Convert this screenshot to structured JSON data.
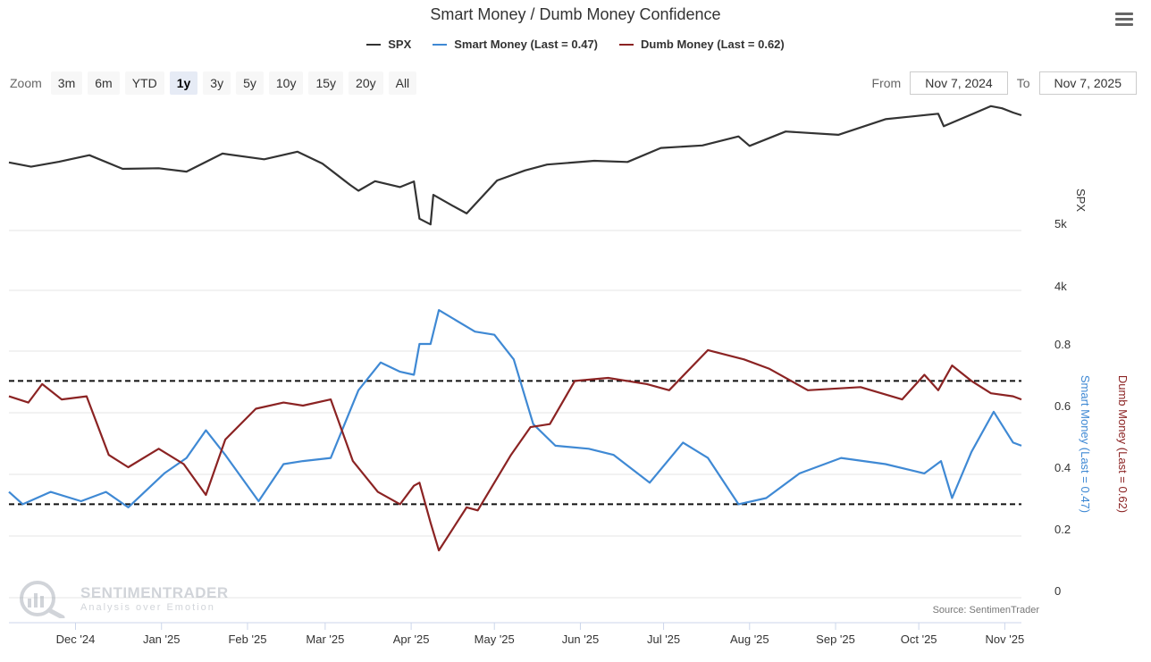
{
  "title": "Smart Money / Dumb Money Confidence",
  "legend": [
    {
      "label": "SPX",
      "color": "#333333"
    },
    {
      "label": "Smart Money (Last = 0.47)",
      "color": "#3f89d4"
    },
    {
      "label": "Dumb Money (Last = 0.62)",
      "color": "#8b2323"
    }
  ],
  "zoom": {
    "label": "Zoom",
    "buttons": [
      "3m",
      "6m",
      "YTD",
      "1y",
      "3y",
      "5y",
      "10y",
      "15y",
      "20y",
      "All"
    ],
    "active": "1y"
  },
  "range": {
    "from_label": "From",
    "from": "Nov 7, 2024",
    "to_label": "To",
    "to": "Nov 7, 2025"
  },
  "source": "Source: SentimenTrader",
  "watermark": {
    "name": "SENTIMENTRADER",
    "tagline": "Analysis over Emotion"
  },
  "icons": {
    "menu": "hamburger-menu-icon",
    "watermark": "magnifier-chart-icon"
  },
  "chart_data": {
    "type": "line",
    "x_start": "2024-11-07",
    "x_end": "2025-11-07",
    "x_ticks": [
      "Dec '24",
      "Jan '25",
      "Feb '25",
      "Mar '25",
      "Apr '25",
      "May '25",
      "Jun '25",
      "Jul '25",
      "Aug '25",
      "Sep '25",
      "Oct '25",
      "Nov '25"
    ],
    "x_tick_dates": [
      "2024-12-01",
      "2025-01-01",
      "2025-02-01",
      "2025-03-01",
      "2025-04-01",
      "2025-05-01",
      "2025-06-01",
      "2025-07-01",
      "2025-08-01",
      "2025-09-01",
      "2025-10-01",
      "2025-11-01"
    ],
    "spx_axis": {
      "title": "SPX",
      "ticks": [
        "4k",
        "5k"
      ],
      "tick_values": [
        4000,
        5000
      ]
    },
    "confidence_axis": {
      "ticks": [
        "0",
        "0.2",
        "0.4",
        "0.6",
        "0.8"
      ],
      "tick_values": [
        0,
        0.2,
        0.4,
        0.6,
        0.8
      ],
      "range": [
        0,
        1
      ]
    },
    "reference_lines": [
      0.68,
      0.28
    ],
    "series": [
      {
        "name": "SPX",
        "color": "#333333",
        "dates": [
          "2024-11-07",
          "2024-11-15",
          "2024-11-25",
          "2024-12-06",
          "2024-12-18",
          "2024-12-31",
          "2025-01-10",
          "2025-01-23",
          "2025-02-07",
          "2025-02-19",
          "2025-02-28",
          "2025-03-10",
          "2025-03-13",
          "2025-03-19",
          "2025-03-28",
          "2025-04-02",
          "2025-04-04",
          "2025-04-08",
          "2025-04-09",
          "2025-04-16",
          "2025-04-21",
          "2025-05-02",
          "2025-05-12",
          "2025-05-20",
          "2025-06-06",
          "2025-06-18",
          "2025-06-30",
          "2025-07-15",
          "2025-07-28",
          "2025-08-01",
          "2025-08-14",
          "2025-09-02",
          "2025-09-19",
          "2025-10-08",
          "2025-10-10",
          "2025-10-27",
          "2025-10-31",
          "2025-11-04",
          "2025-11-07"
        ],
        "values": [
          5975,
          5905,
          5985,
          6090,
          5872,
          5882,
          5827,
          6115,
          6025,
          6145,
          5955,
          5614,
          5522,
          5675,
          5580,
          5670,
          5074,
          4983,
          5456,
          5280,
          5158,
          5686,
          5845,
          5940,
          6000,
          5982,
          6205,
          6245,
          6390,
          6238,
          6468,
          6415,
          6665,
          6753,
          6553,
          6875,
          6840,
          6771,
          6728
        ]
      },
      {
        "name": "Smart Money (Last = 0.47)",
        "color": "#3f89d4",
        "dates": [
          "2024-11-07",
          "2024-11-12",
          "2024-11-22",
          "2024-12-03",
          "2024-12-12",
          "2024-12-20",
          "2025-01-02",
          "2025-01-10",
          "2025-01-17",
          "2025-01-24",
          "2025-02-05",
          "2025-02-14",
          "2025-02-21",
          "2025-03-03",
          "2025-03-13",
          "2025-03-21",
          "2025-03-28",
          "2025-04-02",
          "2025-04-04",
          "2025-04-08",
          "2025-04-11",
          "2025-04-24",
          "2025-05-01",
          "2025-05-08",
          "2025-05-15",
          "2025-05-23",
          "2025-06-04",
          "2025-06-13",
          "2025-06-26",
          "2025-07-08",
          "2025-07-17",
          "2025-07-28",
          "2025-08-07",
          "2025-08-19",
          "2025-09-03",
          "2025-09-19",
          "2025-10-03",
          "2025-10-09",
          "2025-10-13",
          "2025-10-20",
          "2025-10-28",
          "2025-11-04",
          "2025-11-07"
        ],
        "values": [
          0.32,
          0.28,
          0.32,
          0.29,
          0.32,
          0.27,
          0.38,
          0.43,
          0.52,
          0.44,
          0.29,
          0.41,
          0.42,
          0.43,
          0.65,
          0.74,
          0.71,
          0.7,
          0.8,
          0.8,
          0.91,
          0.84,
          0.83,
          0.75,
          0.54,
          0.47,
          0.46,
          0.44,
          0.35,
          0.48,
          0.43,
          0.28,
          0.3,
          0.38,
          0.43,
          0.41,
          0.38,
          0.42,
          0.3,
          0.45,
          0.58,
          0.48,
          0.47
        ]
      },
      {
        "name": "Dumb Money (Last = 0.62)",
        "color": "#8b2323",
        "dates": [
          "2024-11-07",
          "2024-11-14",
          "2024-11-19",
          "2024-11-26",
          "2024-12-05",
          "2024-12-13",
          "2024-12-20",
          "2024-12-31",
          "2025-01-09",
          "2025-01-17",
          "2025-01-24",
          "2025-02-04",
          "2025-02-14",
          "2025-02-21",
          "2025-03-03",
          "2025-03-11",
          "2025-03-20",
          "2025-03-28",
          "2025-04-02",
          "2025-04-04",
          "2025-04-08",
          "2025-04-11",
          "2025-04-21",
          "2025-04-25",
          "2025-05-07",
          "2025-05-14",
          "2025-05-21",
          "2025-05-30",
          "2025-06-11",
          "2025-06-25",
          "2025-07-03",
          "2025-07-17",
          "2025-07-30",
          "2025-08-08",
          "2025-08-22",
          "2025-09-10",
          "2025-09-25",
          "2025-10-03",
          "2025-10-08",
          "2025-10-13",
          "2025-10-20",
          "2025-10-27",
          "2025-11-04",
          "2025-11-07"
        ],
        "values": [
          0.63,
          0.61,
          0.67,
          0.62,
          0.63,
          0.44,
          0.4,
          0.46,
          0.41,
          0.31,
          0.49,
          0.59,
          0.61,
          0.6,
          0.62,
          0.42,
          0.32,
          0.28,
          0.34,
          0.35,
          0.22,
          0.13,
          0.27,
          0.26,
          0.44,
          0.53,
          0.54,
          0.68,
          0.69,
          0.67,
          0.65,
          0.78,
          0.75,
          0.72,
          0.65,
          0.66,
          0.62,
          0.7,
          0.65,
          0.73,
          0.68,
          0.64,
          0.63,
          0.62
        ]
      }
    ]
  }
}
